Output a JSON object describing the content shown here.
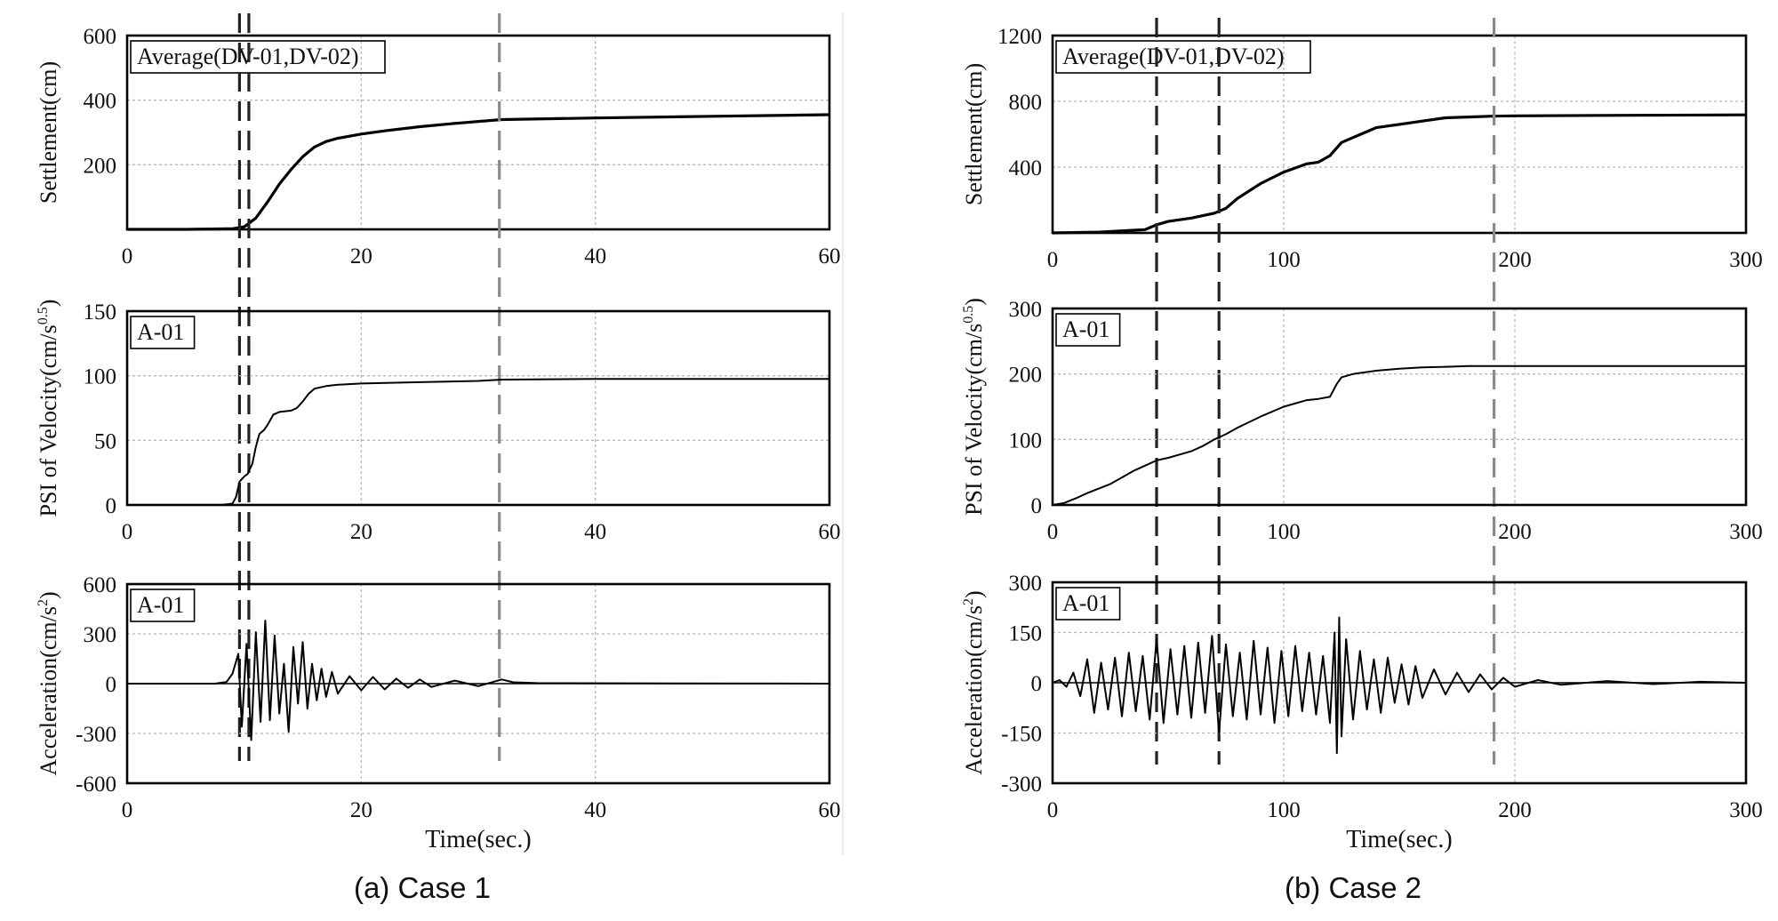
{
  "figure": {
    "left_caption": "(a) Case 1",
    "right_caption": "(b) Case 2"
  },
  "chart_data": [
    {
      "type": "line",
      "id": "c1-settle",
      "case": "Case 1",
      "ylabel": "Settlement(cm)",
      "xlabel": "",
      "xlim": [
        0,
        60
      ],
      "ylim": [
        0,
        600
      ],
      "xticks": [
        0,
        20,
        40,
        60
      ],
      "yticks": [
        200,
        400,
        600
      ],
      "xtick_labels": [
        "0",
        "20",
        "40",
        "60"
      ],
      "ytick_labels": [
        "200",
        "400",
        "600"
      ],
      "annotation": "Average(DV-01,DV-02)",
      "grid": true,
      "series": [
        {
          "name": "Average(DV-01,DV-02)",
          "x": [
            0,
            5,
            9,
            10,
            11,
            12,
            13,
            14,
            15,
            16,
            17,
            18,
            20,
            22,
            25,
            28,
            32,
            40,
            50,
            60
          ],
          "y": [
            0,
            0,
            2,
            8,
            35,
            85,
            140,
            185,
            225,
            255,
            272,
            282,
            295,
            305,
            318,
            328,
            340,
            345,
            350,
            355
          ]
        }
      ],
      "vlines": [
        {
          "x": 9.6,
          "color": "#222222"
        },
        {
          "x": 10.4,
          "color": "#222222"
        },
        {
          "x": 31.8,
          "color": "#8a8a8a"
        }
      ]
    },
    {
      "type": "line",
      "id": "c1-psi",
      "case": "Case 1",
      "ylabel": "PSI of Velocity(cm/s^0.5)",
      "xlabel": "",
      "xlim": [
        0,
        60
      ],
      "ylim": [
        0,
        150
      ],
      "xticks": [
        0,
        20,
        40,
        60
      ],
      "yticks": [
        0,
        50,
        100,
        150
      ],
      "xtick_labels": [
        "0",
        "20",
        "40",
        "60"
      ],
      "ytick_labels": [
        "0",
        "50",
        "100",
        "150"
      ],
      "annotation": "A-01",
      "grid": true,
      "series": [
        {
          "name": "A-01",
          "x": [
            0,
            8,
            9,
            9.3,
            9.6,
            10,
            10.3,
            10.7,
            11,
            11.3,
            11.7,
            12,
            12.5,
            13,
            14,
            14.5,
            15,
            15.5,
            16,
            17,
            18,
            20,
            25,
            30,
            32,
            40,
            60
          ],
          "y": [
            0,
            0,
            1,
            6,
            18,
            22,
            24,
            32,
            45,
            55,
            58,
            62,
            70,
            72,
            73,
            75,
            80,
            86,
            90,
            92,
            93,
            94,
            95,
            96,
            97,
            97.5,
            97.5
          ]
        }
      ],
      "vlines": [
        {
          "x": 9.6,
          "color": "#222222"
        },
        {
          "x": 10.4,
          "color": "#222222"
        },
        {
          "x": 31.8,
          "color": "#8a8a8a"
        }
      ]
    },
    {
      "type": "line",
      "id": "c1-acc",
      "case": "Case 1",
      "ylabel": "Acceleration(cm/s^2)",
      "xlabel": "Time(sec.)",
      "xlim": [
        0,
        60
      ],
      "ylim": [
        -600,
        600
      ],
      "xticks": [
        0,
        20,
        40,
        60
      ],
      "yticks": [
        -600,
        -300,
        0,
        300,
        600
      ],
      "xtick_labels": [
        "0",
        "20",
        "40",
        "60"
      ],
      "ytick_labels": [
        "-600",
        "-300",
        "0",
        "300",
        "600"
      ],
      "annotation": "A-01",
      "grid": true,
      "series": [
        {
          "name": "A-01",
          "x": [
            0,
            7.5,
            8.5,
            9,
            9.5,
            9.8,
            10.2,
            10.6,
            11,
            11.4,
            11.8,
            12.2,
            12.6,
            13,
            13.4,
            13.8,
            14.2,
            14.6,
            15,
            15.4,
            15.8,
            16.2,
            16.6,
            17,
            17.5,
            18,
            19,
            20,
            21,
            22,
            23,
            24,
            25,
            26,
            28,
            30,
            32,
            33,
            35,
            60
          ],
          "y": [
            0,
            0,
            10,
            60,
            180,
            -260,
            240,
            -340,
            310,
            -230,
            380,
            -220,
            290,
            -180,
            120,
            -290,
            220,
            -120,
            250,
            -150,
            120,
            -100,
            90,
            -80,
            70,
            -60,
            45,
            -40,
            40,
            -35,
            30,
            -25,
            25,
            -20,
            18,
            -15,
            25,
            8,
            3,
            0
          ]
        }
      ],
      "vlines": [
        {
          "x": 9.6,
          "color": "#222222"
        },
        {
          "x": 10.4,
          "color": "#222222"
        },
        {
          "x": 31.8,
          "color": "#8a8a8a"
        }
      ]
    },
    {
      "type": "line",
      "id": "c2-settle",
      "case": "Case 2",
      "ylabel": "Settlement(cm)",
      "xlabel": "",
      "xlim": [
        0,
        300
      ],
      "ylim": [
        0,
        1200
      ],
      "xticks": [
        0,
        100,
        200,
        300
      ],
      "yticks": [
        400,
        800,
        1200
      ],
      "xtick_labels": [
        "0",
        "100",
        "200",
        "300"
      ],
      "ytick_labels": [
        "400",
        "800",
        "1200"
      ],
      "annotation": "Average(DV-01,DV-02)",
      "grid": true,
      "series": [
        {
          "name": "Average(DV-01,DV-02)",
          "x": [
            0,
            20,
            40,
            45,
            50,
            60,
            70,
            75,
            80,
            90,
            100,
            110,
            115,
            120,
            125,
            130,
            140,
            150,
            160,
            170,
            180,
            190,
            200,
            250,
            300
          ],
          "y": [
            0,
            5,
            20,
            50,
            70,
            90,
            120,
            150,
            210,
            300,
            370,
            420,
            430,
            470,
            550,
            580,
            640,
            660,
            680,
            700,
            705,
            710,
            712,
            715,
            718
          ]
        }
      ],
      "vlines": [
        {
          "x": 45,
          "color": "#222222"
        },
        {
          "x": 72,
          "color": "#222222"
        },
        {
          "x": 191,
          "color": "#8a8a8a"
        }
      ]
    },
    {
      "type": "line",
      "id": "c2-psi",
      "case": "Case 2",
      "ylabel": "PSI of Velocity(cm/s^0.5)",
      "xlabel": "",
      "xlim": [
        0,
        300
      ],
      "ylim": [
        0,
        300
      ],
      "xticks": [
        0,
        100,
        200,
        300
      ],
      "yticks": [
        0,
        100,
        200,
        300
      ],
      "xtick_labels": [
        "0",
        "100",
        "200",
        "300"
      ],
      "ytick_labels": [
        "0",
        "100",
        "200",
        "300"
      ],
      "annotation": "A-01",
      "grid": true,
      "series": [
        {
          "name": "A-01",
          "x": [
            0,
            5,
            10,
            15,
            20,
            25,
            30,
            35,
            40,
            45,
            50,
            55,
            60,
            65,
            70,
            75,
            80,
            90,
            100,
            110,
            115,
            120,
            123,
            125,
            130,
            140,
            150,
            160,
            170,
            180,
            190,
            200,
            250,
            300
          ],
          "y": [
            0,
            3,
            10,
            18,
            25,
            32,
            42,
            52,
            60,
            68,
            72,
            77,
            82,
            90,
            100,
            108,
            118,
            135,
            150,
            160,
            162,
            165,
            185,
            195,
            200,
            205,
            208,
            210,
            211,
            212,
            212,
            212,
            212,
            212
          ]
        }
      ],
      "vlines": [
        {
          "x": 45,
          "color": "#222222"
        },
        {
          "x": 72,
          "color": "#222222"
        },
        {
          "x": 191,
          "color": "#8a8a8a"
        }
      ]
    },
    {
      "type": "line",
      "id": "c2-acc",
      "case": "Case 2",
      "ylabel": "Acceleration(cm/s^2)",
      "xlabel": "Time(sec.)",
      "xlim": [
        0,
        300
      ],
      "ylim": [
        -300,
        300
      ],
      "xticks": [
        0,
        100,
        200,
        300
      ],
      "yticks": [
        -300,
        -150,
        0,
        150,
        300
      ],
      "xtick_labels": [
        "0",
        "100",
        "200",
        "300"
      ],
      "ytick_labels": [
        "-300",
        "-150",
        "0",
        "150",
        "300"
      ],
      "annotation": "A-01",
      "grid": true,
      "series": [
        {
          "name": "A-01",
          "x": [
            0,
            3,
            6,
            9,
            12,
            15,
            18,
            21,
            24,
            27,
            30,
            33,
            36,
            39,
            42,
            45,
            48,
            51,
            54,
            57,
            60,
            63,
            66,
            69,
            72,
            75,
            78,
            81,
            84,
            87,
            90,
            93,
            96,
            99,
            102,
            105,
            108,
            111,
            114,
            117,
            120,
            122,
            123,
            124,
            125,
            127,
            130,
            133,
            136,
            139,
            142,
            145,
            148,
            151,
            154,
            157,
            160,
            165,
            170,
            175,
            180,
            185,
            190,
            195,
            200,
            210,
            220,
            240,
            260,
            280,
            300
          ],
          "y": [
            0,
            8,
            -12,
            30,
            -40,
            70,
            -90,
            60,
            -80,
            75,
            -100,
            90,
            -85,
            80,
            -110,
            130,
            -120,
            100,
            -95,
            110,
            -105,
            120,
            -90,
            140,
            -150,
            115,
            -100,
            90,
            -110,
            125,
            -95,
            105,
            -120,
            95,
            -100,
            110,
            -85,
            90,
            -95,
            80,
            -120,
            150,
            -210,
            195,
            -160,
            130,
            -110,
            95,
            -80,
            70,
            -90,
            75,
            -60,
            55,
            -65,
            50,
            -45,
            40,
            -35,
            30,
            -28,
            25,
            -20,
            15,
            -12,
            8,
            -6,
            5,
            -4,
            3,
            0
          ]
        }
      ],
      "vlines": [
        {
          "x": 45,
          "color": "#222222"
        },
        {
          "x": 72,
          "color": "#222222"
        },
        {
          "x": 191,
          "color": "#8a8a8a"
        }
      ]
    }
  ]
}
